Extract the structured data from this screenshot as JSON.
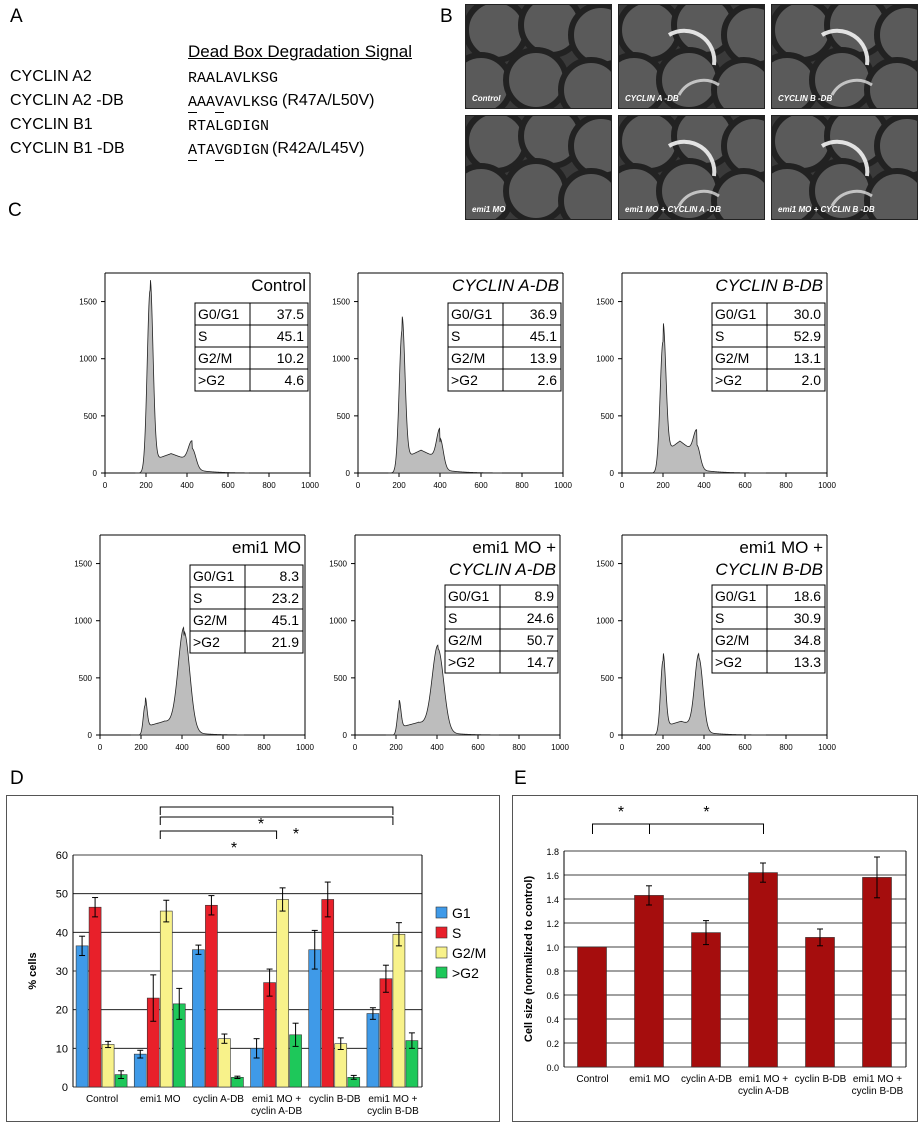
{
  "panel_labels": {
    "a": "A",
    "b": "B",
    "c": "C",
    "d": "D",
    "e": "E"
  },
  "panel_a": {
    "header": "Dead Box Degradation Signal",
    "rows": [
      {
        "name": "CYCLIN A2",
        "seq": "RAALAVLKSG",
        "note": ""
      },
      {
        "name": "CYCLIN A2 -DB",
        "seq": "AAAVAVLKSG",
        "note": "(R47A/L50V)"
      },
      {
        "name": "CYCLIN B1",
        "seq": "RTALGDIGN",
        "note": ""
      },
      {
        "name": "CYCLIN B1 -DB",
        "seq": "ATAVGDIGN",
        "note": "(R42A/L45V)"
      }
    ]
  },
  "panel_b": {
    "images": [
      {
        "label": "Control"
      },
      {
        "label": "CYCLIN A -DB"
      },
      {
        "label": "CYCLIN B -DB"
      },
      {
        "label": "emi1 MO"
      },
      {
        "label": "emi1 MO + CYCLIN A -DB"
      },
      {
        "label": "emi1 MO + CYCLIN B -DB"
      }
    ]
  },
  "chart_data": [
    {
      "type": "area",
      "panel": "C",
      "xticks": [
        "0",
        "200",
        "400",
        "600",
        "800",
        "1000"
      ],
      "yticks": [
        "0",
        "500",
        "1000",
        "1500"
      ],
      "xlim": [
        0,
        1000
      ],
      "ylim": [
        0,
        1750
      ],
      "histograms": [
        {
          "title": "Control",
          "table": [
            [
              "G0/G1",
              "37.5"
            ],
            [
              "S",
              "45.1"
            ],
            [
              "G2/M",
              "10.2"
            ],
            [
              ">G2",
              "4.6"
            ]
          ],
          "peak1": [
            220,
            1600,
            14
          ],
          "peak2": [
            425,
            180,
            18
          ],
          "sphase": 170
        },
        {
          "title": "CYCLIN A-DB",
          "table": [
            [
              "G0/G1",
              "36.9"
            ],
            [
              "S",
              "45.1"
            ],
            [
              "G2/M",
              "13.9"
            ],
            [
              ">G2",
              "2.6"
            ]
          ],
          "peak1": [
            215,
            1250,
            14
          ],
          "peak2": [
            400,
            270,
            16
          ],
          "sphase": 200
        },
        {
          "title": "CYCLIN B-DB",
          "table": [
            [
              "G0/G1",
              "30.0"
            ],
            [
              "S",
              "52.9"
            ],
            [
              "G2/M",
              "13.1"
            ],
            [
              ">G2",
              "2.0"
            ]
          ],
          "peak1": [
            200,
            1150,
            14
          ],
          "peak2": [
            365,
            210,
            16
          ],
          "sphase": 280
        },
        {
          "title": "emi1 MO",
          "table": [
            [
              "G0/G1",
              "8.3"
            ],
            [
              "S",
              "23.2"
            ],
            [
              "G2/M",
              "45.1"
            ],
            [
              ">G2",
              "21.9"
            ]
          ],
          "peak1": [
            220,
            260,
            9
          ],
          "peak2": [
            410,
            870,
            28
          ],
          "sphase": 120
        },
        {
          "title": "emi1 MO + CYCLIN A-DB",
          "table": [
            [
              "G0/G1",
              "8.9"
            ],
            [
              "S",
              "24.6"
            ],
            [
              "G2/M",
              "50.7"
            ],
            [
              ">G2",
              "14.7"
            ]
          ],
          "peak1": [
            215,
            240,
            9
          ],
          "peak2": [
            405,
            720,
            28
          ],
          "sphase": 110
        },
        {
          "title": "emi1 MO + CYCLIN B-DB",
          "table": [
            [
              "G0/G1",
              "18.6"
            ],
            [
              "S",
              "30.9"
            ],
            [
              "G2/M",
              "34.8"
            ],
            [
              ">G2",
              "13.3"
            ]
          ],
          "peak1": [
            200,
            650,
            12
          ],
          "peak2": [
            375,
            640,
            20
          ],
          "sphase": 120
        }
      ]
    },
    {
      "type": "bar",
      "panel": "D",
      "ylabel": "% cells",
      "ylim": [
        0,
        60
      ],
      "yticks": [
        "0",
        "10",
        "20",
        "30",
        "40",
        "50",
        "60"
      ],
      "categories": [
        [
          "Control"
        ],
        [
          "emi1 MO"
        ],
        [
          "cyclin A-DB"
        ],
        [
          "emi1 MO +",
          "cyclin A-DB"
        ],
        [
          "cyclin B-DB"
        ],
        [
          "emi1 MO +",
          "cyclin B-DB"
        ]
      ],
      "series": [
        {
          "name": "G1",
          "color": "#3f9ae8",
          "values": [
            36.5,
            8.5,
            35.5,
            10,
            35.5,
            19
          ],
          "err": [
            2.5,
            1,
            1.2,
            2.5,
            5,
            1.5
          ]
        },
        {
          "name": "S",
          "color": "#e8202a",
          "values": [
            46.5,
            23,
            47,
            27,
            48.5,
            28
          ],
          "err": [
            2.5,
            6,
            2.5,
            3.5,
            4.5,
            3.5
          ]
        },
        {
          "name": "G2/M",
          "color": "#f8f28a",
          "values": [
            11,
            45.5,
            12.5,
            48.5,
            11.2,
            39.5
          ],
          "err": [
            0.8,
            2.8,
            1.2,
            3,
            1.5,
            3
          ]
        },
        {
          "name": ">G2",
          "color": "#1ec85a",
          "values": [
            3.2,
            21.5,
            2.5,
            13.5,
            2.5,
            12
          ],
          "err": [
            1,
            4,
            0.3,
            3,
            0.5,
            2
          ]
        }
      ],
      "significance": "*"
    },
    {
      "type": "bar",
      "panel": "E",
      "ylabel": "Cell size (normalized to control)",
      "ylim": [
        0,
        1.8
      ],
      "yticks": [
        "0.0",
        "0.2",
        "0.4",
        "0.6",
        "0.8",
        "1.0",
        "1.2",
        "1.4",
        "1.6",
        "1.8"
      ],
      "categories": [
        [
          "Control"
        ],
        [
          "emi1 MO"
        ],
        [
          "cyclin A-DB"
        ],
        [
          "emi1 MO +",
          "cyclin A-DB"
        ],
        [
          "cyclin B-DB"
        ],
        [
          "emi1 MO +",
          "cyclin B-DB"
        ]
      ],
      "series": [
        {
          "name": "",
          "color": "#a50d0d",
          "values": [
            1.0,
            1.43,
            1.12,
            1.62,
            1.08,
            1.58
          ],
          "err": [
            0,
            0.08,
            0.1,
            0.08,
            0.07,
            0.17
          ]
        }
      ],
      "significance": "*"
    }
  ]
}
